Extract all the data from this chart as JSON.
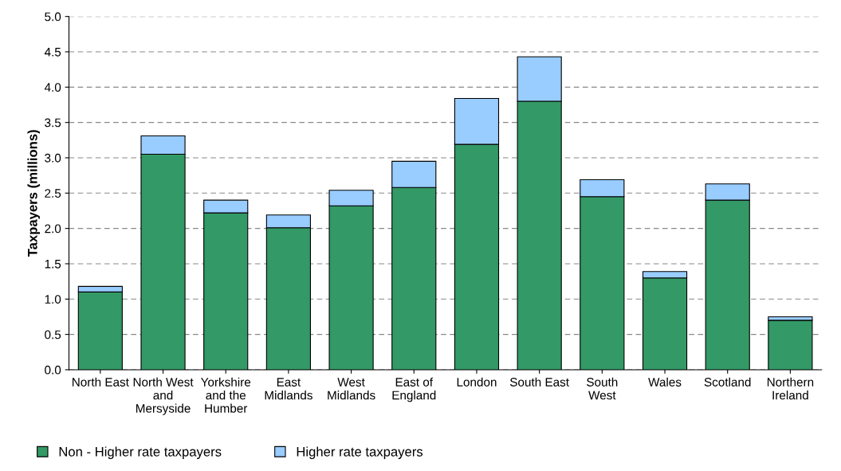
{
  "chart_data": {
    "type": "bar",
    "stacked": true,
    "ylabel": "Taxpayers (millions)",
    "categories": [
      "North East",
      "North West and Mersyside",
      "Yorkshire and the Humber",
      "East Midlands",
      "West Midlands",
      "East of England",
      "London",
      "South East",
      "South West",
      "Wales",
      "Scotland",
      "Northern Ireland"
    ],
    "series": [
      {
        "name": "Non - Higher rate taxpayers",
        "color": "#339966",
        "values": [
          1.1,
          3.05,
          2.22,
          2.01,
          2.32,
          2.58,
          3.19,
          3.8,
          2.45,
          1.3,
          2.4,
          0.7
        ]
      },
      {
        "name": "Higher rate taxpayers",
        "color": "#99ccff",
        "values": [
          0.08,
          0.26,
          0.18,
          0.18,
          0.22,
          0.37,
          0.65,
          0.63,
          0.24,
          0.09,
          0.23,
          0.05
        ]
      }
    ],
    "ylim": [
      0,
      5
    ],
    "yticks": [
      {
        "value": 0,
        "label": "0.0"
      },
      {
        "value": 0.5,
        "label": "0.5"
      },
      {
        "value": 1,
        "label": "1.0"
      },
      {
        "value": 1.5,
        "label": "1.5"
      },
      {
        "value": 2,
        "label": "2.0"
      },
      {
        "value": 2.5,
        "label": "2.5"
      },
      {
        "value": 3,
        "label": "3.0"
      },
      {
        "value": 3.5,
        "label": "3.5"
      },
      {
        "value": 4,
        "label": "4.0"
      },
      {
        "value": 4.5,
        "label": "4.5"
      },
      {
        "value": 5,
        "label": "5.0"
      }
    ],
    "grid": "y",
    "legend": "bottom left"
  }
}
